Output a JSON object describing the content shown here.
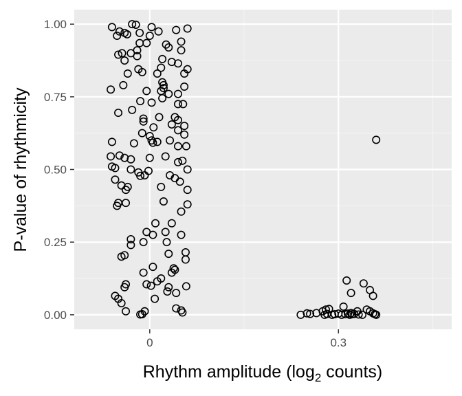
{
  "colors": {
    "panel": "#ebebeb",
    "grid_major": "#ffffff",
    "grid_minor": "#f5f5f5",
    "point_stroke": "#000000",
    "tick_text": "#4d4d4d"
  },
  "chart_data": {
    "type": "scatter",
    "title": "",
    "xlabel_prefix": "Rhythm amplitude (log",
    "xlabel_sub": "2",
    "xlabel_suffix": " counts)",
    "ylabel": "P-value of rhythmicity",
    "xlim": [
      -0.12,
      0.48
    ],
    "ylim": [
      -0.05,
      1.05
    ],
    "x_ticks": [
      0,
      0.3
    ],
    "x_tick_labels": [
      "0",
      "0.3"
    ],
    "y_ticks": [
      0,
      0.25,
      0.5,
      0.75,
      1.0
    ],
    "y_tick_labels": [
      "0.00",
      "0.25",
      "0.50",
      "0.75",
      "1.00"
    ],
    "grid": true,
    "marker": "open-circle",
    "points": [
      [
        -0.06,
        0.99
      ],
      [
        -0.048,
        0.975
      ],
      [
        -0.036,
        0.965
      ],
      [
        -0.028,
        1.0
      ],
      [
        -0.022,
        0.998
      ],
      [
        -0.016,
        0.97
      ],
      [
        0.0,
        0.96
      ],
      [
        0.003,
        0.99
      ],
      [
        0.014,
        0.975
      ],
      [
        0.042,
        0.98
      ],
      [
        0.06,
        0.985
      ],
      [
        0.05,
        0.94
      ],
      [
        -0.052,
        0.96
      ],
      [
        -0.04,
        0.97
      ],
      [
        -0.02,
        0.91
      ],
      [
        -0.016,
        0.935
      ],
      [
        -0.005,
        0.935
      ],
      [
        0.026,
        0.93
      ],
      [
        0.03,
        0.92
      ],
      [
        0.05,
        0.91
      ],
      [
        -0.05,
        0.895
      ],
      [
        -0.044,
        0.9
      ],
      [
        -0.03,
        0.9
      ],
      [
        -0.02,
        0.89
      ],
      [
        -0.04,
        0.875
      ],
      [
        0.02,
        0.88
      ],
      [
        0.035,
        0.87
      ],
      [
        0.045,
        0.865
      ],
      [
        0.018,
        0.85
      ],
      [
        0.06,
        0.845
      ],
      [
        -0.018,
        0.845
      ],
      [
        -0.012,
        0.835
      ],
      [
        -0.035,
        0.83
      ],
      [
        0.012,
        0.83
      ],
      [
        0.055,
        0.83
      ],
      [
        -0.062,
        0.775
      ],
      [
        -0.042,
        0.79
      ],
      [
        -0.005,
        0.77
      ],
      [
        0.02,
        0.8
      ],
      [
        0.022,
        0.79
      ],
      [
        0.022,
        0.78
      ],
      [
        0.018,
        0.77
      ],
      [
        0.055,
        0.785
      ],
      [
        0.03,
        0.76
      ],
      [
        0.045,
        0.76
      ],
      [
        -0.015,
        0.735
      ],
      [
        0.003,
        0.73
      ],
      [
        0.02,
        0.745
      ],
      [
        0.045,
        0.725
      ],
      [
        0.053,
        0.725
      ],
      [
        -0.05,
        0.695
      ],
      [
        -0.028,
        0.705
      ],
      [
        -0.01,
        0.675
      ],
      [
        -0.01,
        0.665
      ],
      [
        0.015,
        0.68
      ],
      [
        0.04,
        0.68
      ],
      [
        0.045,
        0.67
      ],
      [
        0.035,
        0.655
      ],
      [
        0.055,
        0.65
      ],
      [
        0.045,
        0.635
      ],
      [
        0.006,
        0.645
      ],
      [
        0.055,
        0.62
      ],
      [
        -0.012,
        0.625
      ],
      [
        0.0,
        0.615
      ],
      [
        0.003,
        0.6
      ],
      [
        0.005,
        0.592
      ],
      [
        0.012,
        0.595
      ],
      [
        -0.025,
        0.59
      ],
      [
        -0.06,
        0.595
      ],
      [
        0.032,
        0.6
      ],
      [
        0.045,
        0.58
      ],
      [
        0.058,
        0.58
      ],
      [
        -0.062,
        0.545
      ],
      [
        -0.048,
        0.548
      ],
      [
        -0.04,
        0.54
      ],
      [
        -0.03,
        0.535
      ],
      [
        0.0,
        0.54
      ],
      [
        0.025,
        0.545
      ],
      [
        0.045,
        0.525
      ],
      [
        0.052,
        0.53
      ],
      [
        -0.06,
        0.51
      ],
      [
        -0.055,
        0.505
      ],
      [
        -0.03,
        0.5
      ],
      [
        -0.018,
        0.49
      ],
      [
        -0.015,
        0.478
      ],
      [
        -0.008,
        0.48
      ],
      [
        -0.002,
        0.495
      ],
      [
        0.032,
        0.48
      ],
      [
        0.04,
        0.47
      ],
      [
        0.06,
        0.5
      ],
      [
        0.048,
        0.458
      ],
      [
        -0.055,
        0.465
      ],
      [
        -0.045,
        0.445
      ],
      [
        -0.038,
        0.43
      ],
      [
        -0.035,
        0.44
      ],
      [
        0.018,
        0.44
      ],
      [
        0.06,
        0.43
      ],
      [
        -0.05,
        0.385
      ],
      [
        -0.052,
        0.375
      ],
      [
        -0.038,
        0.385
      ],
      [
        0.022,
        0.39
      ],
      [
        0.05,
        0.355
      ],
      [
        0.06,
        0.38
      ],
      [
        0.009,
        0.315
      ],
      [
        0.035,
        0.315
      ],
      [
        -0.005,
        0.285
      ],
      [
        0.005,
        0.275
      ],
      [
        0.025,
        0.285
      ],
      [
        0.05,
        0.275
      ],
      [
        -0.03,
        0.26
      ],
      [
        -0.03,
        0.24
      ],
      [
        -0.01,
        0.25
      ],
      [
        0.027,
        0.25
      ],
      [
        0.03,
        0.21
      ],
      [
        0.057,
        0.215
      ],
      [
        0.057,
        0.19
      ],
      [
        -0.045,
        0.2
      ],
      [
        -0.04,
        0.205
      ],
      [
        0.005,
        0.165
      ],
      [
        0.038,
        0.16
      ],
      [
        0.04,
        0.155
      ],
      [
        0.035,
        0.145
      ],
      [
        -0.01,
        0.145
      ],
      [
        0.018,
        0.125
      ],
      [
        0.012,
        0.115
      ],
      [
        -0.038,
        0.105
      ],
      [
        -0.04,
        0.095
      ],
      [
        -0.005,
        0.105
      ],
      [
        0.002,
        0.1
      ],
      [
        0.03,
        0.095
      ],
      [
        0.028,
        0.08
      ],
      [
        0.058,
        0.098
      ],
      [
        0.042,
        0.075
      ],
      [
        0.008,
        0.055
      ],
      [
        -0.055,
        0.065
      ],
      [
        -0.05,
        0.055
      ],
      [
        -0.045,
        0.04
      ],
      [
        -0.038,
        0.012
      ],
      [
        0.042,
        0.022
      ],
      [
        0.05,
        0.015
      ],
      [
        0.052,
        0.008
      ],
      [
        -0.015,
        0.001
      ],
      [
        -0.012,
        0.002
      ],
      [
        -0.008,
        0.012
      ],
      [
        0.24,
        0.0
      ],
      [
        0.25,
        0.005
      ],
      [
        0.255,
        0.003
      ],
      [
        0.265,
        0.006
      ],
      [
        0.275,
        0.012
      ],
      [
        0.278,
        0.0
      ],
      [
        0.28,
        0.018
      ],
      [
        0.282,
        0.003
      ],
      [
        0.285,
        0.02
      ],
      [
        0.29,
        0.0
      ],
      [
        0.294,
        0.002
      ],
      [
        0.3,
        0.004
      ],
      [
        0.305,
        0.0
      ],
      [
        0.308,
        0.028
      ],
      [
        0.311,
        0.002
      ],
      [
        0.315,
        0.004
      ],
      [
        0.318,
        0.0
      ],
      [
        0.32,
        0.006
      ],
      [
        0.322,
        0.002
      ],
      [
        0.325,
        0.003
      ],
      [
        0.33,
        0.012
      ],
      [
        0.332,
        0.001
      ],
      [
        0.338,
        0.0
      ],
      [
        0.345,
        0.018
      ],
      [
        0.35,
        0.012
      ],
      [
        0.355,
        0.005
      ],
      [
        0.358,
        0.002
      ],
      [
        0.36,
        0.0
      ],
      [
        0.313,
        0.118
      ],
      [
        0.34,
        0.108
      ],
      [
        0.32,
        0.075
      ],
      [
        0.35,
        0.085
      ],
      [
        0.355,
        0.065
      ],
      [
        0.36,
        0.602
      ]
    ]
  }
}
